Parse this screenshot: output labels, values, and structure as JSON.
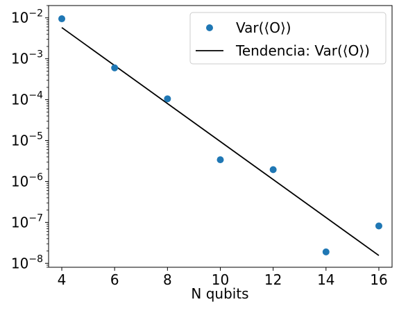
{
  "chart_data": {
    "type": "scatter",
    "xlabel": "N qubits",
    "ylabel": "",
    "title": "",
    "xlim": [
      3.5,
      16.5
    ],
    "ylim": [
      8e-09,
      0.02
    ],
    "yscale": "log",
    "grid": false,
    "legend_position": "top-right",
    "x_ticks": [
      {
        "value": 4,
        "label": "4"
      },
      {
        "value": 6,
        "label": "6"
      },
      {
        "value": 8,
        "label": "8"
      },
      {
        "value": 10,
        "label": "10"
      },
      {
        "value": 12,
        "label": "12"
      },
      {
        "value": 14,
        "label": "14"
      },
      {
        "value": 16,
        "label": "16"
      }
    ],
    "y_ticks": [
      {
        "value": 1e-08,
        "base": "10",
        "exp": "−8"
      },
      {
        "value": 1e-07,
        "base": "10",
        "exp": "−7"
      },
      {
        "value": 1e-06,
        "base": "10",
        "exp": "−6"
      },
      {
        "value": 1e-05,
        "base": "10",
        "exp": "−5"
      },
      {
        "value": 0.0001,
        "base": "10",
        "exp": "−4"
      },
      {
        "value": 0.001,
        "base": "10",
        "exp": "−3"
      },
      {
        "value": 0.01,
        "base": "10",
        "exp": "−2"
      }
    ],
    "series": [
      {
        "name": "Var(⟨O⟩)",
        "kind": "scatter",
        "color": "#1f77b4",
        "x": [
          4,
          6,
          8,
          10,
          12,
          14,
          16
        ],
        "y": [
          0.0095,
          0.0006,
          0.000105,
          3.4e-06,
          1.95e-06,
          1.9e-08,
          8.2e-08
        ]
      },
      {
        "name": "Tendencia: Var(⟨O⟩)",
        "kind": "line",
        "color": "#000000",
        "x": [
          4,
          16
        ],
        "y": [
          0.0058,
          1.55e-08
        ]
      }
    ]
  }
}
